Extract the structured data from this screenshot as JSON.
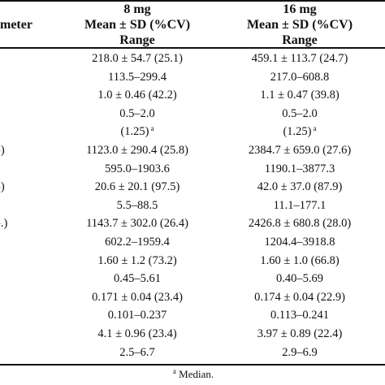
{
  "header": {
    "parameter_label": "ameter",
    "col_8mg": {
      "dose": "8 mg",
      "stat": "Mean ± SD (%CV)",
      "range": "Range"
    },
    "col_16mg": {
      "dose": "16 mg",
      "stat": "Mean ± SD (%CV)",
      "range": "Range"
    }
  },
  "rows": [
    {
      "label": "",
      "v8": "218.0 ± 54.7 (25.1)",
      "v16": "459.1 ± 113.7 (24.7)",
      "sup8": "",
      "sup16": ""
    },
    {
      "label": "",
      "v8": "113.5–299.4",
      "v16": "217.0–608.8",
      "sup8": "",
      "sup16": ""
    },
    {
      "label": "",
      "v8": "1.0 ± 0.46 (42.2)",
      "v16": "1.1 ± 0.47 (39.8)",
      "sup8": "",
      "sup16": ""
    },
    {
      "label": "",
      "v8": "0.5–2.0",
      "v16": "0.5–2.0",
      "sup8": "",
      "sup16": ""
    },
    {
      "label": "",
      "v8": "(1.25)",
      "v16": "(1.25)",
      "sup8": "a",
      "sup16": "a"
    },
    {
      "label": "-)",
      "v8": "1123.0 ± 290.4 (25.8)",
      "v16": "2384.7 ± 659.0 (27.6)",
      "sup8": "",
      "sup16": ""
    },
    {
      "label": "",
      "v8": "595.0–1903.6",
      "v16": "1190.1–3877.3",
      "sup8": "",
      "sup16": ""
    },
    {
      "label": "-)",
      "v8": "20.6 ± 20.1 (97.5)",
      "v16": "42.0 ± 37.0 (87.9)",
      "sup8": "",
      "sup16": ""
    },
    {
      "label": "",
      "v8": "5.5–88.5",
      "v16": "11.1–177.1",
      "sup8": "",
      "sup16": ""
    },
    {
      "label": "-.)",
      "v8": "1143.7 ± 302.0 (26.4)",
      "v16": "2426.8 ± 680.8 (28.0)",
      "sup8": "",
      "sup16": ""
    },
    {
      "label": "",
      "v8": "602.2–1959.4",
      "v16": "1204.4–3918.8",
      "sup8": "",
      "sup16": ""
    },
    {
      "label": "",
      "v8": "1.60 ± 1.2 (73.2)",
      "v16": "1.60 ± 1.0 (66.8)",
      "sup8": "",
      "sup16": ""
    },
    {
      "label": "",
      "v8": "0.45–5.61",
      "v16": "0.40–5.69",
      "sup8": "",
      "sup16": ""
    },
    {
      "label": "",
      "v8": "0.171 ± 0.04 (23.4)",
      "v16": "0.174 ± 0.04 (22.9)",
      "sup8": "",
      "sup16": ""
    },
    {
      "label": "",
      "v8": "0.101–0.237",
      "v16": "0.113–0.241",
      "sup8": "",
      "sup16": ""
    },
    {
      "label": "",
      "v8": "4.1 ± 0.96 (23.4)",
      "v16": "3.97 ± 0.89 (22.4)",
      "sup8": "",
      "sup16": ""
    },
    {
      "label": "",
      "v8": "2.5–6.7",
      "v16": "2.9–6.9",
      "sup8": "",
      "sup16": ""
    }
  ],
  "footnote": {
    "mark": "a",
    "text": "Median."
  }
}
